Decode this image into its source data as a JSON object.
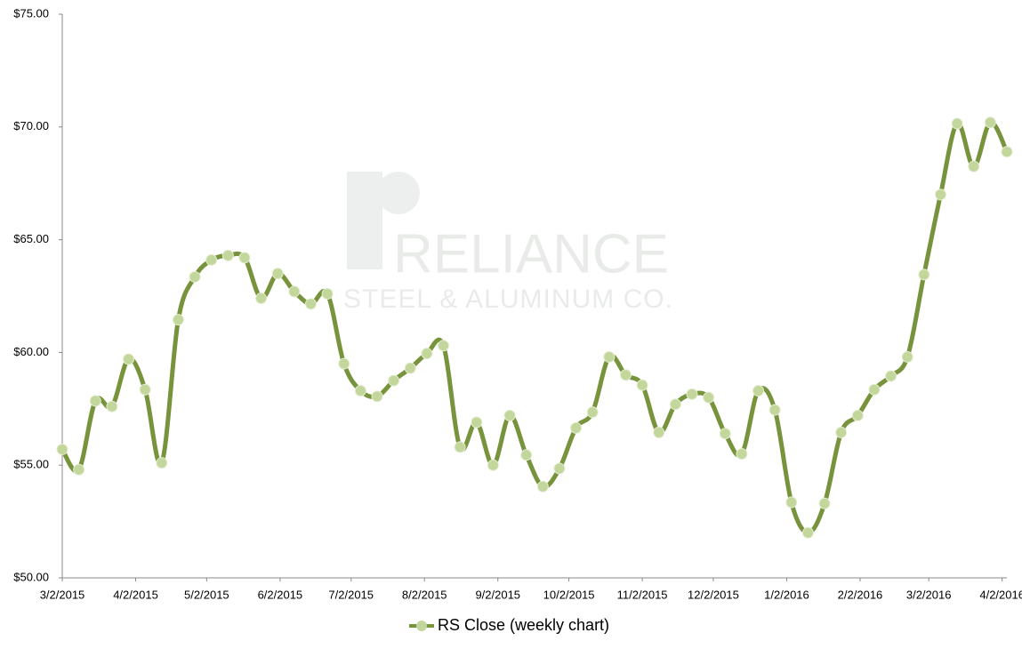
{
  "chart_data": {
    "type": "line",
    "watermark": {
      "name": "RELIANCE",
      "subtitle": "STEEL & ALUMINUM CO."
    },
    "x": [
      "3/2/2015",
      "3/9/2015",
      "3/16/2015",
      "3/23/2015",
      "3/30/2015",
      "4/6/2015",
      "4/13/2015",
      "4/20/2015",
      "4/27/2015",
      "5/4/2015",
      "5/11/2015",
      "5/18/2015",
      "5/25/2015",
      "6/1/2015",
      "6/8/2015",
      "6/15/2015",
      "6/22/2015",
      "6/29/2015",
      "7/6/2015",
      "7/13/2015",
      "7/20/2015",
      "7/27/2015",
      "8/3/2015",
      "8/10/2015",
      "8/17/2015",
      "8/24/2015",
      "8/31/2015",
      "9/7/2015",
      "9/14/2015",
      "9/21/2015",
      "9/28/2015",
      "10/5/2015",
      "10/12/2015",
      "10/19/2015",
      "10/26/2015",
      "11/2/2015",
      "11/9/2015",
      "11/16/2015",
      "11/23/2015",
      "11/30/2015",
      "12/7/2015",
      "12/14/2015",
      "12/21/2015",
      "12/28/2015",
      "1/4/2016",
      "1/11/2016",
      "1/18/2016",
      "1/25/2016",
      "2/1/2016",
      "2/8/2016",
      "2/15/2016",
      "2/22/2016",
      "2/29/2016",
      "3/7/2016",
      "3/14/2016",
      "3/21/2016",
      "3/28/2016",
      "4/4/2016"
    ],
    "series": [
      {
        "name": "RS Close (weekly chart)",
        "color": "#77933c",
        "marker_color": "#c3d69b",
        "values": [
          55.7,
          54.8,
          57.85,
          57.6,
          59.7,
          58.35,
          55.1,
          61.45,
          63.35,
          64.1,
          64.3,
          64.2,
          62.4,
          63.5,
          62.7,
          62.15,
          62.6,
          59.5,
          58.3,
          58.05,
          58.75,
          59.3,
          59.95,
          60.3,
          55.8,
          56.9,
          55.0,
          57.2,
          55.45,
          54.05,
          54.85,
          56.65,
          57.35,
          59.8,
          59.0,
          58.55,
          56.45,
          57.7,
          58.15,
          58.0,
          56.4,
          55.5,
          58.3,
          57.45,
          53.35,
          52.0,
          53.3,
          56.45,
          57.2,
          58.35,
          58.95,
          59.8,
          63.45,
          67.0,
          70.15,
          68.25,
          70.2,
          68.9
        ]
      }
    ],
    "xlim": [
      "3/2/2015",
      "4/4/2016"
    ],
    "xticks": [
      "3/2/2015",
      "4/2/2015",
      "5/2/2015",
      "6/2/2015",
      "7/2/2015",
      "8/2/2015",
      "9/2/2015",
      "10/2/2015",
      "11/2/2015",
      "12/2/2015",
      "1/2/2016",
      "2/2/2016",
      "3/2/2016",
      "4/2/2016"
    ],
    "ylim": [
      50,
      75
    ],
    "yticks": [
      {
        "value": 50,
        "label": "$50.00"
      },
      {
        "value": 55,
        "label": "$55.00"
      },
      {
        "value": 60,
        "label": "$60.00"
      },
      {
        "value": 65,
        "label": "$65.00"
      },
      {
        "value": 70,
        "label": "$70.00"
      },
      {
        "value": 75,
        "label": "$75.00"
      }
    ],
    "grid": false,
    "legend": "bottom"
  }
}
